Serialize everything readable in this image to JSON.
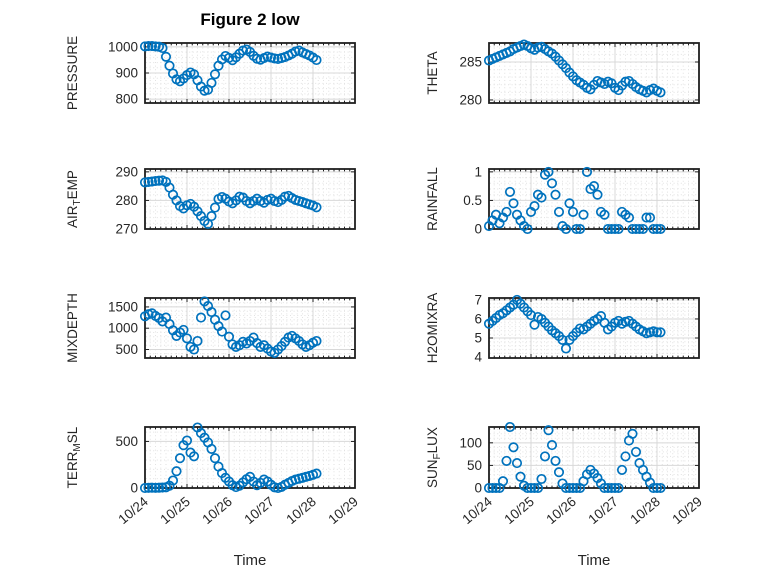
{
  "title": "Figure 2 low",
  "xlabel": "Time",
  "x_tick_labels": [
    "10/24",
    "10/25",
    "10/26",
    "10/27",
    "10/28",
    "10/29"
  ],
  "colors": {
    "marker": "#0072BD",
    "axis": "#1f1f1f",
    "text": "#262626",
    "grid": "#d8d8d8",
    "minor_grid": "#e2e2e2",
    "background": "#ffffff"
  },
  "xlim_days": [
    0,
    5
  ],
  "x_days": [
    0,
    0.083,
    0.167,
    0.25,
    0.333,
    0.417,
    0.5,
    0.583,
    0.667,
    0.75,
    0.833,
    0.917,
    1,
    1.083,
    1.167,
    1.25,
    1.333,
    1.417,
    1.5,
    1.583,
    1.667,
    1.75,
    1.833,
    1.917,
    2,
    2.083,
    2.167,
    2.25,
    2.333,
    2.417,
    2.5,
    2.583,
    2.667,
    2.75,
    2.833,
    2.917,
    3,
    3.083,
    3.167,
    3.25,
    3.333,
    3.417,
    3.5,
    3.583,
    3.667,
    3.75,
    3.833,
    3.917,
    4,
    4.083
  ],
  "chart_data": [
    {
      "type": "scatter",
      "ylabel": "PRESSURE",
      "ylabel_parts": [
        {
          "text": "PRESSURE",
          "sub": false
        }
      ],
      "row": 0,
      "col": 0,
      "ylim": [
        785,
        1015
      ],
      "yticks": [
        800,
        900,
        1000
      ],
      "y": [
        1002,
        1003,
        1003,
        1002,
        1001,
        996,
        962,
        928,
        898,
        876,
        868,
        879,
        892,
        902,
        895,
        872,
        848,
        832,
        836,
        862,
        895,
        928,
        952,
        965,
        958,
        949,
        960,
        974,
        986,
        990,
        981,
        966,
        955,
        951,
        957,
        963,
        959,
        956,
        954,
        957,
        961,
        967,
        974,
        982,
        986,
        979,
        973,
        967,
        959,
        950
      ]
    },
    {
      "type": "scatter",
      "ylabel": "THETA",
      "ylabel_parts": [
        {
          "text": "THETA",
          "sub": false
        }
      ],
      "row": 0,
      "col": 1,
      "ylim": [
        279.6,
        287.5
      ],
      "yticks": [
        280,
        285
      ],
      "y": [
        285.2,
        285.4,
        285.6,
        285.8,
        286,
        286.2,
        286.4,
        286.7,
        286.9,
        287.1,
        287.3,
        287.1,
        286.8,
        286.6,
        286.9,
        287,
        286.7,
        286.4,
        286.1,
        285.7,
        285.2,
        284.7,
        284.2,
        283.6,
        283.1,
        282.6,
        282.3,
        282,
        281.6,
        281.4,
        282,
        282.5,
        282.3,
        282.1,
        282.4,
        282.2,
        281.6,
        281.3,
        281.9,
        282.4,
        282.5,
        282.1,
        281.7,
        281.4,
        281.2,
        281,
        281.3,
        281.5,
        281.2,
        281
      ]
    },
    {
      "type": "scatter",
      "ylabel": "AIR_TEMP",
      "ylabel_parts": [
        {
          "text": "AIR",
          "sub": false
        },
        {
          "text": "T",
          "sub": true
        },
        {
          "text": "EMP",
          "sub": false
        }
      ],
      "row": 1,
      "col": 0,
      "ylim": [
        270,
        291
      ],
      "yticks": [
        270,
        280,
        290
      ],
      "y": [
        286.3,
        286.5,
        286.6,
        286.8,
        286.9,
        287,
        286.5,
        284.5,
        282,
        280,
        278,
        277.2,
        278.3,
        278.8,
        277.8,
        276.2,
        274.5,
        272.8,
        271.8,
        274.5,
        277.5,
        280.5,
        281.2,
        280.6,
        279.6,
        279,
        280,
        281.3,
        281,
        279.8,
        279,
        279.8,
        280.6,
        279.8,
        279.2,
        280.2,
        280.6,
        279.8,
        279.4,
        280.2,
        281.3,
        281.6,
        280.8,
        280.2,
        279.8,
        279.4,
        279,
        278.6,
        278.2,
        277.6
      ]
    },
    {
      "type": "scatter",
      "ylabel": "RAINFALL",
      "ylabel_parts": [
        {
          "text": "RAINFALL",
          "sub": false
        }
      ],
      "row": 1,
      "col": 1,
      "ylim": [
        0,
        1.05
      ],
      "yticks": [
        0,
        0.5,
        1
      ],
      "y": [
        0.05,
        0.15,
        0.25,
        0.1,
        0.2,
        0.3,
        0.65,
        0.45,
        0.25,
        0.15,
        0.05,
        0,
        0.3,
        0.4,
        0.6,
        0.55,
        0.95,
        1,
        0.8,
        0.6,
        0.3,
        0.05,
        0,
        0.45,
        0.3,
        0,
        0,
        0.25,
        1,
        0.7,
        0.75,
        0.6,
        0.3,
        0.25,
        0,
        0,
        0,
        0,
        0.3,
        0.25,
        0.2,
        0,
        0,
        0,
        0,
        0.2,
        0.2,
        0,
        0,
        0
      ]
    },
    {
      "type": "scatter",
      "ylabel": "MIXDEPTH",
      "ylabel_parts": [
        {
          "text": "MIXDEPTH",
          "sub": false
        }
      ],
      "row": 2,
      "col": 0,
      "ylim": [
        300,
        1710
      ],
      "yticks": [
        500,
        1000,
        1500
      ],
      "y": [
        1280,
        1330,
        1350,
        1290,
        1240,
        1160,
        1250,
        1100,
        950,
        820,
        900,
        960,
        760,
        560,
        500,
        700,
        1250,
        1630,
        1520,
        1380,
        1200,
        1050,
        920,
        1300,
        800,
        620,
        560,
        600,
        680,
        640,
        700,
        780,
        650,
        560,
        600,
        520,
        450,
        420,
        500,
        580,
        680,
        780,
        820,
        760,
        700,
        620,
        560,
        600,
        660,
        700
      ]
    },
    {
      "type": "scatter",
      "ylabel": "H2OMIXRA",
      "ylabel_parts": [
        {
          "text": "H2OMIXRA",
          "sub": false
        }
      ],
      "row": 2,
      "col": 1,
      "ylim": [
        3.95,
        7.1
      ],
      "yticks": [
        4,
        5,
        6,
        7
      ],
      "y": [
        5.75,
        5.9,
        6.05,
        6.2,
        6.3,
        6.45,
        6.6,
        6.75,
        7,
        6.8,
        6.6,
        6.4,
        6.2,
        5.7,
        6.1,
        6,
        5.8,
        5.6,
        5.4,
        5.25,
        5.1,
        4.9,
        4.45,
        4.9,
        5.1,
        5.3,
        5.5,
        5.45,
        5.6,
        5.75,
        5.9,
        6,
        6.15,
        5.8,
        5.45,
        5.6,
        5.8,
        5.9,
        5.75,
        5.85,
        5.9,
        5.75,
        5.6,
        5.45,
        5.35,
        5.25,
        5.3,
        5.35,
        5.3,
        5.3
      ]
    },
    {
      "type": "scatter",
      "ylabel": "TERR_MSL",
      "ylabel_parts": [
        {
          "text": "TERR",
          "sub": false
        },
        {
          "text": "M",
          "sub": true
        },
        {
          "text": "SL",
          "sub": false
        }
      ],
      "row": 3,
      "col": 0,
      "ylim": [
        0,
        655
      ],
      "yticks": [
        0,
        500
      ],
      "y": [
        0,
        2,
        3,
        2,
        3,
        4,
        8,
        25,
        80,
        180,
        320,
        460,
        510,
        380,
        340,
        650,
        590,
        540,
        490,
        420,
        320,
        230,
        160,
        110,
        70,
        30,
        10,
        25,
        60,
        95,
        120,
        70,
        30,
        55,
        90,
        70,
        35,
        8,
        0,
        12,
        35,
        55,
        75,
        90,
        100,
        110,
        120,
        130,
        142,
        155
      ]
    },
    {
      "type": "scatter",
      "ylabel": "SUN_FLUX",
      "ylabel_parts": [
        {
          "text": "SUN",
          "sub": false
        },
        {
          "text": "F",
          "sub": true
        },
        {
          "text": "LUX",
          "sub": false
        }
      ],
      "row": 3,
      "col": 1,
      "ylim": [
        0,
        135
      ],
      "yticks": [
        0,
        50,
        100
      ],
      "y": [
        0,
        0,
        0,
        0,
        15,
        60,
        135,
        90,
        55,
        25,
        5,
        0,
        0,
        0,
        0,
        20,
        70,
        128,
        95,
        60,
        35,
        10,
        0,
        0,
        0,
        0,
        0,
        15,
        30,
        40,
        32,
        22,
        10,
        0,
        0,
        0,
        0,
        0,
        40,
        70,
        105,
        120,
        80,
        55,
        40,
        25,
        12,
        0,
        0,
        0
      ]
    }
  ]
}
